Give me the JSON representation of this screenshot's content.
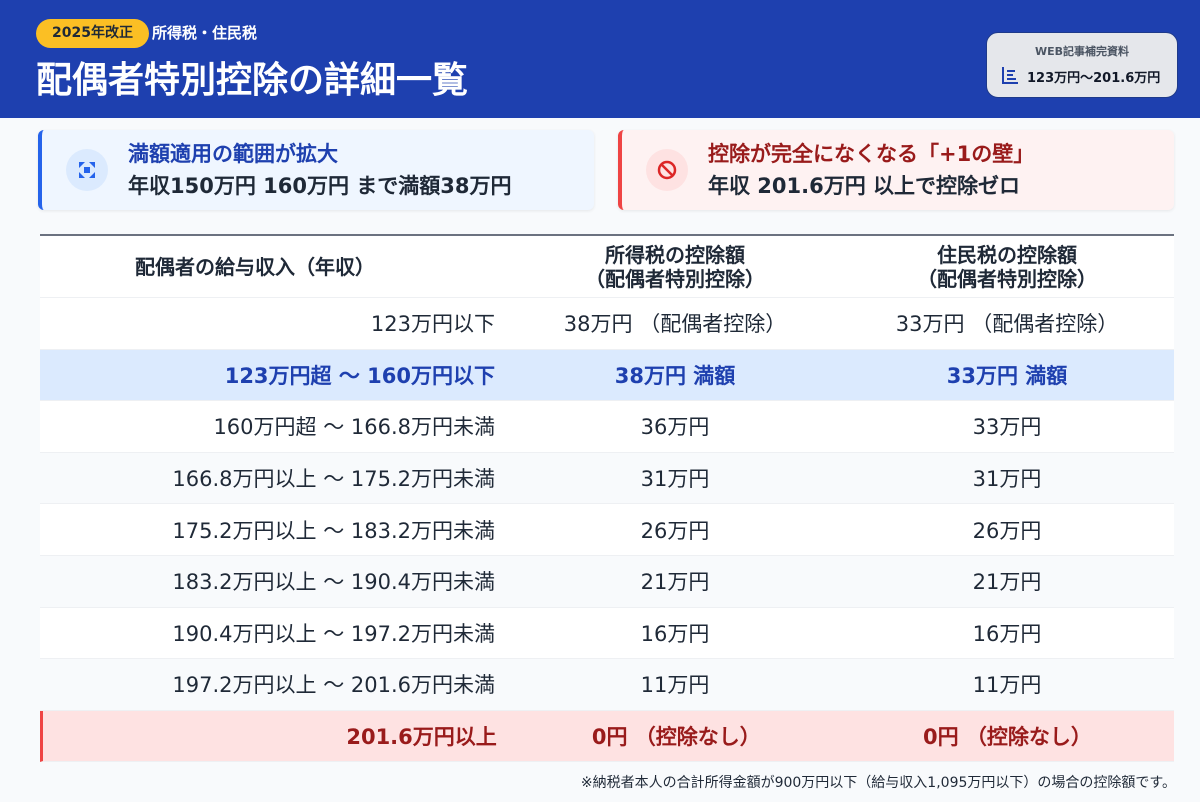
{
  "header": {
    "badge": "2025年改正",
    "category": "所得税・住民税",
    "title": "配偶者特別控除の詳細一覧",
    "reference": {
      "label": "WEB記事補完資料",
      "range": "123万円〜201.6万円",
      "icon": "bar-chart-icon"
    }
  },
  "colors": {
    "header": "#1e40af",
    "badge": "#fbbf24",
    "highlight": "#dbeafe",
    "danger": "#fee2e2"
  },
  "cards": [
    {
      "icon": "expand-icon",
      "heading": "満額適用の範囲が拡大",
      "text": "年収150万円 160万円 まで満額38万円"
    },
    {
      "icon": "prohibited-icon",
      "heading": "控除が完全になくなる「+1の壁」",
      "text": "年収 201.6万円 以上で控除ゼロ"
    }
  ],
  "table": {
    "headers": [
      "配偶者の給与収入（年収）",
      "所得税の控除額\n（配偶者特別控除）",
      "住民税の控除額\n（配偶者特別控除）"
    ],
    "rows": [
      [
        "123万円以下",
        "38万円 （配偶者控除）",
        "33万円 （配偶者控除）"
      ],
      [
        "123万円超 〜 160万円以下",
        "38万円 満額",
        "33万円 満額"
      ],
      [
        "160万円超 〜 166.8万円未満",
        "36万円",
        "33万円"
      ],
      [
        "166.8万円以上 〜 175.2万円未満",
        "31万円",
        "31万円"
      ],
      [
        "175.2万円以上 〜 183.2万円未満",
        "26万円",
        "26万円"
      ],
      [
        "183.2万円以上 〜 190.4万円未満",
        "21万円",
        "21万円"
      ],
      [
        "190.4万円以上 〜 197.2万円未満",
        "16万円",
        "16万円"
      ],
      [
        "197.2万円以上 〜 201.6万円未満",
        "11万円",
        "11万円"
      ],
      [
        "201.6万円以上",
        "0円 （控除なし）",
        "0円 （控除なし）"
      ]
    ]
  },
  "note": "※納税者本人の合計所得金額が900万円以下（給与収入1,095万円以下）の場合の控除額です。"
}
